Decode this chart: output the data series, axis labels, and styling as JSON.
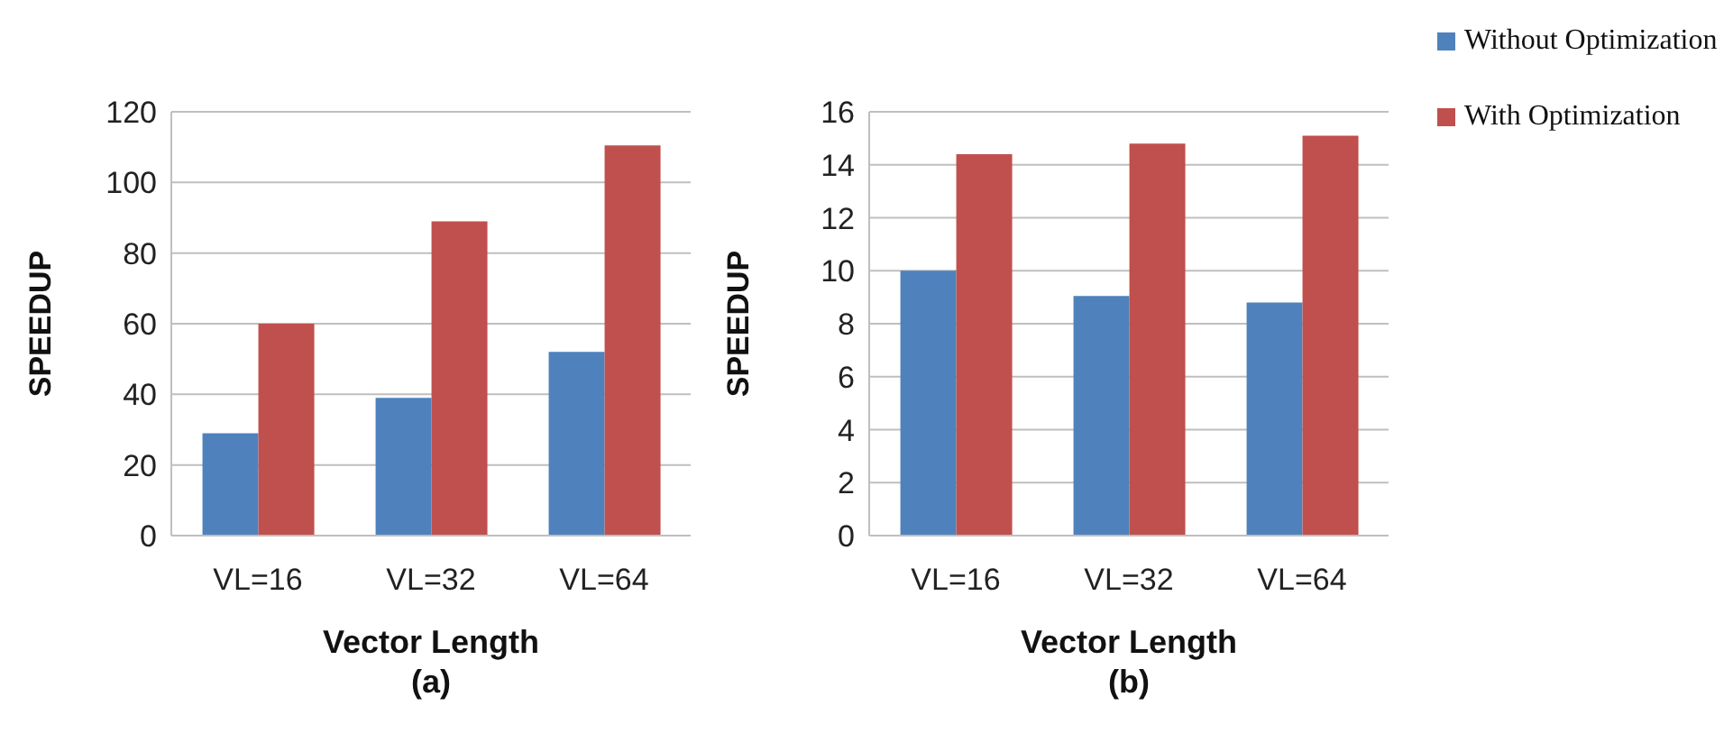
{
  "chart_data": [
    {
      "type": "bar",
      "categories": [
        "VL=16",
        "VL=32",
        "VL=64"
      ],
      "xlabel": "Vector Length",
      "ylabel": "SPEEDUP",
      "annotations": [
        "(a)"
      ],
      "ylim": [
        0,
        120
      ],
      "yticks": [
        0,
        20,
        40,
        60,
        80,
        100,
        120
      ],
      "grid": "y",
      "legend": false,
      "series": [
        {
          "color": "#4f81bd",
          "values": [
            29,
            39,
            52
          ]
        },
        {
          "color": "#c0504d",
          "values": [
            60,
            89,
            110.5
          ]
        }
      ]
    },
    {
      "type": "bar",
      "categories": [
        "VL=16",
        "VL=32",
        "VL=64"
      ],
      "xlabel": "Vector Length",
      "ylabel": "SPEEDUP",
      "annotations": [
        "(b)"
      ],
      "ylim": [
        0,
        16
      ],
      "yticks": [
        0,
        2,
        4,
        6,
        8,
        10,
        12,
        14,
        16
      ],
      "grid": "y",
      "legend": "top right",
      "series": [
        {
          "name": "Without Optimization",
          "color": "#4f81bd",
          "values": [
            10,
            9.05,
            8.8
          ]
        },
        {
          "name": "With Optimization",
          "color": "#c0504d",
          "values": [
            14.4,
            14.8,
            15.1
          ]
        }
      ]
    }
  ]
}
